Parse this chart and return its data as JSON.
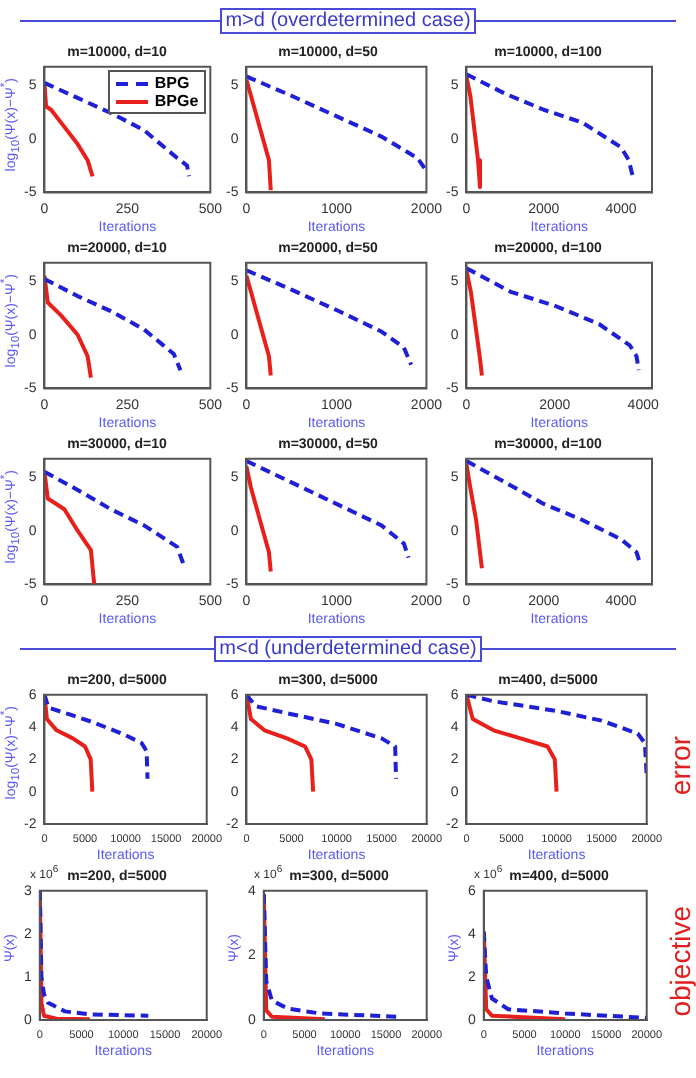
{
  "chart_data": [
    {
      "type": "other",
      "title": "m>d (overdetermined case)"
    },
    {
      "type": "line",
      "title": "m=10000, d=10",
      "xlabel": "Iterations",
      "ylabel": "log$_{10}$(Ψ(x)−Ψ$^{*}$)",
      "xlim": [
        0,
        500
      ],
      "xticks": [
        0,
        250,
        500
      ],
      "ylim": [
        -5,
        6.7
      ],
      "yticks": [
        -5,
        0,
        5
      ],
      "grid": false,
      "legend": "top right",
      "marker": "none",
      "series": [
        {
          "name": "BPG",
          "color": "#1f1fd6",
          "line_style": "dashed",
          "x": [
            0,
            100,
            200,
            300,
            400,
            430,
            435
          ],
          "values": [
            5.2,
            3.8,
            2.4,
            0.8,
            -1.8,
            -2.5,
            -3.5
          ]
        },
        {
          "name": "BPGe",
          "color": "#e8201b",
          "line_style": "solid",
          "x": [
            0,
            5,
            20,
            50,
            100,
            130,
            145
          ],
          "values": [
            5.2,
            3,
            2.7,
            1.5,
            -0.5,
            -2,
            -3.5
          ]
        }
      ]
    },
    {
      "type": "line",
      "title": "m=10000, d=50",
      "xlabel": "Iterations",
      "xlim": [
        0,
        2000
      ],
      "xticks": [
        0,
        1000,
        2000
      ],
      "ylim": [
        -5,
        6.7
      ],
      "yticks": [
        -5,
        0,
        5
      ],
      "grid": false,
      "marker": "none",
      "series": [
        {
          "color": "#1f1fd6",
          "line_style": "dashed",
          "x": [
            0,
            500,
            1000,
            1500,
            1900,
            2000
          ],
          "values": [
            5.8,
            4,
            2.1,
            0.2,
            -1.8,
            -3
          ]
        },
        {
          "color": "#e8201b",
          "line_style": "solid",
          "x": [
            0,
            50,
            150,
            250,
            270
          ],
          "values": [
            5.5,
            4,
            1,
            -2,
            -4.8
          ]
        }
      ]
    },
    {
      "type": "line",
      "title": "m=10000, d=100",
      "xlabel": "Iterations",
      "xlim": [
        0,
        4800
      ],
      "xticks": [
        0,
        2000,
        4000
      ],
      "ylim": [
        -5,
        6.7
      ],
      "yticks": [
        -5,
        0,
        5
      ],
      "grid": false,
      "marker": "none",
      "series": [
        {
          "color": "#1f1fd6",
          "line_style": "dashed",
          "x": [
            0,
            1000,
            2000,
            3000,
            4000,
            4200,
            4300
          ],
          "values": [
            6,
            4.2,
            2.7,
            1.5,
            -0.8,
            -2,
            -3.5
          ]
        },
        {
          "color": "#e8201b",
          "line_style": "solid",
          "x": [
            0,
            100,
            200,
            300,
            350
          ],
          "values": [
            5.8,
            4,
            1,
            -2,
            -4.5
          ]
        }
      ]
    },
    {
      "type": "line",
      "title": "m=20000, d=10",
      "xlabel": "Iterations",
      "ylabel": "log$_{10}$(Ψ(x)−Ψ$^{*}$)",
      "xlim": [
        0,
        500
      ],
      "xticks": [
        0,
        250,
        500
      ],
      "ylim": [
        -5,
        6.7
      ],
      "yticks": [
        -5,
        0,
        5
      ],
      "grid": false,
      "marker": "none",
      "series": [
        {
          "color": "#1f1fd6",
          "line_style": "dashed",
          "x": [
            0,
            100,
            200,
            300,
            390,
            410
          ],
          "values": [
            5.2,
            3.6,
            2.2,
            0.5,
            -1.8,
            -3.3
          ]
        },
        {
          "color": "#e8201b",
          "line_style": "solid",
          "x": [
            0,
            10,
            50,
            100,
            130,
            140
          ],
          "values": [
            5.5,
            3,
            1.8,
            0,
            -2,
            -4
          ]
        }
      ]
    },
    {
      "type": "line",
      "title": "m=20000, d=50",
      "xlabel": "Iterations",
      "xlim": [
        0,
        2000
      ],
      "xticks": [
        0,
        1000,
        2000
      ],
      "ylim": [
        -5,
        6.7
      ],
      "yticks": [
        -5,
        0,
        5
      ],
      "grid": false,
      "marker": "none",
      "series": [
        {
          "color": "#1f1fd6",
          "line_style": "dashed",
          "x": [
            0,
            500,
            1000,
            1500,
            1750,
            1830
          ],
          "values": [
            6,
            4.2,
            2.3,
            0.3,
            -1.2,
            -2.8
          ]
        },
        {
          "color": "#e8201b",
          "line_style": "solid",
          "x": [
            0,
            50,
            150,
            250,
            270
          ],
          "values": [
            5.5,
            4,
            1,
            -2,
            -3.8
          ]
        }
      ]
    },
    {
      "type": "line",
      "title": "m=20000, d=100",
      "xlabel": "Iterations",
      "xlim": [
        0,
        4200
      ],
      "xticks": [
        0,
        2000,
        4000
      ],
      "ylim": [
        -5,
        6.7
      ],
      "yticks": [
        -5,
        0,
        5
      ],
      "grid": false,
      "marker": "none",
      "series": [
        {
          "color": "#1f1fd6",
          "line_style": "dashed",
          "x": [
            0,
            1000,
            2000,
            3000,
            3700,
            3850,
            3900
          ],
          "values": [
            6.2,
            4,
            2.7,
            1,
            -1,
            -2,
            -3.3
          ]
        },
        {
          "color": "#e8201b",
          "line_style": "solid",
          "x": [
            0,
            100,
            200,
            300,
            350
          ],
          "values": [
            6,
            4,
            1,
            -2,
            -3.8
          ]
        }
      ]
    },
    {
      "type": "line",
      "title": "m=30000, d=10",
      "xlabel": "Iterations",
      "ylabel": "log$_{10}$(Ψ(x)−Ψ$^{*}$)",
      "xlim": [
        0,
        500
      ],
      "xticks": [
        0,
        250,
        500
      ],
      "ylim": [
        -5,
        6.7
      ],
      "yticks": [
        -5,
        0,
        5
      ],
      "grid": false,
      "marker": "none",
      "series": [
        {
          "color": "#1f1fd6",
          "line_style": "dashed",
          "x": [
            0,
            100,
            200,
            300,
            400,
            420
          ],
          "values": [
            5.5,
            3.8,
            2,
            0.5,
            -1.5,
            -3.2
          ]
        },
        {
          "color": "#e8201b",
          "line_style": "solid",
          "x": [
            0,
            10,
            60,
            100,
            140,
            150
          ],
          "values": [
            5.5,
            3,
            2,
            0,
            -1.8,
            -5
          ]
        }
      ]
    },
    {
      "type": "line",
      "title": "m=30000, d=50",
      "xlabel": "Iterations",
      "xlim": [
        0,
        2000
      ],
      "xticks": [
        0,
        1000,
        2000
      ],
      "ylim": [
        -5,
        6.7
      ],
      "yticks": [
        -5,
        0,
        5
      ],
      "grid": false,
      "marker": "none",
      "series": [
        {
          "color": "#1f1fd6",
          "line_style": "dashed",
          "x": [
            0,
            500,
            1000,
            1500,
            1750,
            1800
          ],
          "values": [
            6.5,
            4.5,
            2.5,
            0.5,
            -1.2,
            -2.5
          ]
        },
        {
          "color": "#e8201b",
          "line_style": "solid",
          "x": [
            0,
            50,
            150,
            250,
            270
          ],
          "values": [
            6,
            4,
            1,
            -2,
            -3.8
          ]
        }
      ]
    },
    {
      "type": "line",
      "title": "m=30000, d=100",
      "xlabel": "Iterations",
      "xlim": [
        0,
        4800
      ],
      "xticks": [
        0,
        2000,
        4000
      ],
      "ylim": [
        -5,
        6.7
      ],
      "yticks": [
        -5,
        0,
        5
      ],
      "grid": false,
      "marker": "none",
      "series": [
        {
          "color": "#1f1fd6",
          "line_style": "dashed",
          "x": [
            0,
            1000,
            2000,
            3000,
            4000,
            4400,
            4500
          ],
          "values": [
            6.5,
            4.5,
            2.5,
            1,
            -0.8,
            -2,
            -3.2
          ]
        },
        {
          "color": "#e8201b",
          "line_style": "solid",
          "x": [
            0,
            100,
            250,
            350,
            400
          ],
          "values": [
            6.2,
            4,
            1,
            -2,
            -3.5
          ]
        }
      ]
    },
    {
      "type": "other",
      "title": "m<d (underdetermined case)"
    },
    {
      "type": "line",
      "title": "m=200, d=5000",
      "xlabel": "Iterations",
      "ylabel": "log$_{10}$(Ψ(x)−Ψ$^{*}$)",
      "xlim": [
        0,
        20000
      ],
      "xticks": [
        0,
        5000,
        10000,
        15000,
        20000
      ],
      "ylim": [
        -2,
        6
      ],
      "yticks": [
        -2,
        0,
        2,
        4,
        6
      ],
      "grid": false,
      "marker": "none",
      "series": [
        {
          "color": "#1f1fd6",
          "line_style": "dashed",
          "x": [
            0,
            500,
            3000,
            6000,
            10000,
            12000,
            12600,
            12700
          ],
          "values": [
            6,
            5.2,
            4.8,
            4.3,
            3.5,
            3,
            2.5,
            0.8
          ]
        },
        {
          "color": "#e8201b",
          "line_style": "solid",
          "x": [
            0,
            300,
            1500,
            3500,
            5000,
            5700,
            5900
          ],
          "values": [
            6,
            4.5,
            3.8,
            3.3,
            2.8,
            2,
            0
          ]
        }
      ]
    },
    {
      "type": "line",
      "title": "m=300, d=5000",
      "xlabel": "Iterations",
      "xlim": [
        0,
        20000
      ],
      "xticks": [
        0,
        5000,
        10000,
        15000,
        20000
      ],
      "ylim": [
        -2,
        6
      ],
      "yticks": [
        -2,
        0,
        2,
        4,
        6
      ],
      "grid": false,
      "marker": "none",
      "series": [
        {
          "color": "#1f1fd6",
          "line_style": "dashed",
          "x": [
            0,
            1000,
            5000,
            10000,
            15000,
            16500,
            16600
          ],
          "values": [
            6,
            5.3,
            4.8,
            4.2,
            3.3,
            2.8,
            0.8
          ]
        },
        {
          "color": "#e8201b",
          "line_style": "solid",
          "x": [
            0,
            500,
            2000,
            4500,
            6500,
            7200,
            7400
          ],
          "values": [
            6,
            4.5,
            3.8,
            3.3,
            2.8,
            2,
            0
          ]
        }
      ]
    },
    {
      "type": "line",
      "title": "m=400, d=5000",
      "xlabel": "Iterations",
      "xlim": [
        0,
        20000
      ],
      "xticks": [
        0,
        5000,
        10000,
        15000,
        20000
      ],
      "ylim": [
        -2,
        6
      ],
      "yticks": [
        -2,
        0,
        2,
        4,
        6
      ],
      "grid": false,
      "marker": "none",
      "series": [
        {
          "color": "#1f1fd6",
          "line_style": "dashed",
          "x": [
            0,
            3000,
            10000,
            15000,
            19000,
            19800,
            20000
          ],
          "values": [
            6,
            5.6,
            5,
            4.4,
            3.6,
            3,
            1
          ]
        },
        {
          "color": "#e8201b",
          "line_style": "solid",
          "x": [
            0,
            700,
            3000,
            6000,
            9000,
            9800,
            10000
          ],
          "values": [
            6,
            4.5,
            3.8,
            3.3,
            2.8,
            2,
            0
          ]
        }
      ]
    },
    {
      "type": "other",
      "title": "error"
    },
    {
      "type": "line",
      "title": "m=200, d=5000",
      "xlabel": "Iterations",
      "ylabel": "Ψ(x)",
      "annotations": [
        "x 10$^{6}$"
      ],
      "xlim": [
        0,
        20000
      ],
      "xticks": [
        0,
        5000,
        10000,
        15000,
        20000
      ],
      "ylim": [
        0,
        3
      ],
      "yticks": [
        0,
        1,
        2,
        3
      ],
      "grid": false,
      "marker": "none",
      "series": [
        {
          "color": "#1f1fd6",
          "line_style": "dashed",
          "x": [
            0,
            200,
            500,
            1000,
            3000,
            6000,
            13000
          ],
          "values": [
            3,
            1,
            0.6,
            0.4,
            0.2,
            0.13,
            0.1
          ]
        },
        {
          "color": "#e8201b",
          "line_style": "solid",
          "x": [
            0,
            200,
            500,
            2000,
            6000
          ],
          "values": [
            3,
            0.4,
            0.1,
            0.03,
            0.02
          ]
        }
      ]
    },
    {
      "type": "line",
      "title": "m=300, d=5000",
      "xlabel": "Iterations",
      "ylabel": "Ψ(x)",
      "annotations": [
        "x 10$^{6}$"
      ],
      "xlim": [
        0,
        20000
      ],
      "xticks": [
        0,
        5000,
        10000,
        15000,
        20000
      ],
      "ylim": [
        0,
        4
      ],
      "yticks": [
        0,
        2,
        4
      ],
      "grid": false,
      "marker": "none",
      "series": [
        {
          "color": "#1f1fd6",
          "line_style": "dashed",
          "x": [
            0,
            300,
            1000,
            3000,
            7000,
            16500
          ],
          "values": [
            3.9,
            1.2,
            0.6,
            0.35,
            0.2,
            0.1
          ]
        },
        {
          "color": "#e8201b",
          "line_style": "solid",
          "x": [
            0,
            300,
            1000,
            7500
          ],
          "values": [
            3.9,
            0.3,
            0.1,
            0.02
          ]
        }
      ]
    },
    {
      "type": "line",
      "title": "m=400, d=5000",
      "xlabel": "Iterations",
      "ylabel": "Ψ(x)",
      "annotations": [
        "x 10$^{6}$"
      ],
      "xlim": [
        0,
        20000
      ],
      "xticks": [
        0,
        5000,
        10000,
        15000,
        20000
      ],
      "ylim": [
        0,
        6
      ],
      "yticks": [
        0,
        2,
        4,
        6
      ],
      "grid": false,
      "marker": "none",
      "series": [
        {
          "color": "#1f1fd6",
          "line_style": "dashed",
          "x": [
            0,
            300,
            1000,
            3000,
            10000,
            20000
          ],
          "values": [
            4.1,
            2,
            1,
            0.5,
            0.3,
            0.1
          ]
        },
        {
          "color": "#e8201b",
          "line_style": "solid",
          "x": [
            0,
            300,
            1000,
            10000
          ],
          "values": [
            4.1,
            0.5,
            0.2,
            0.03
          ]
        }
      ]
    },
    {
      "type": "other",
      "title": "objective"
    }
  ]
}
